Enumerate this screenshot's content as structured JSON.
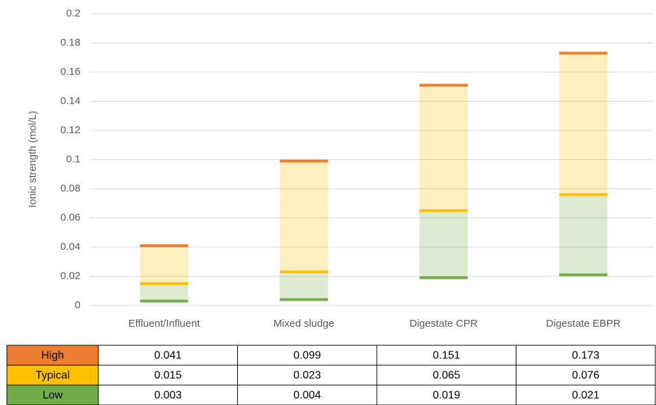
{
  "chart_data": {
    "type": "range-bar",
    "y_label": "Ionic strength (mol/L)",
    "categories": [
      "Effluent/Influent",
      "Mixed sludge",
      "Digestate CPR",
      "Digestate EBPR"
    ],
    "series": [
      {
        "name": "High",
        "color": "#ed7d31",
        "values": [
          0.041,
          0.099,
          0.151,
          0.173
        ]
      },
      {
        "name": "Typical",
        "color": "#ffc000",
        "values": [
          0.015,
          0.023,
          0.065,
          0.076
        ]
      },
      {
        "name": "Low",
        "color": "#70ad47",
        "values": [
          0.003,
          0.004,
          0.019,
          0.021
        ]
      }
    ],
    "ylim": [
      0,
      0.2
    ],
    "yticks": [
      0,
      0.02,
      0.04,
      0.06,
      0.08,
      0.1,
      0.12,
      0.14,
      0.16,
      0.18,
      0.2
    ],
    "grid": true
  }
}
